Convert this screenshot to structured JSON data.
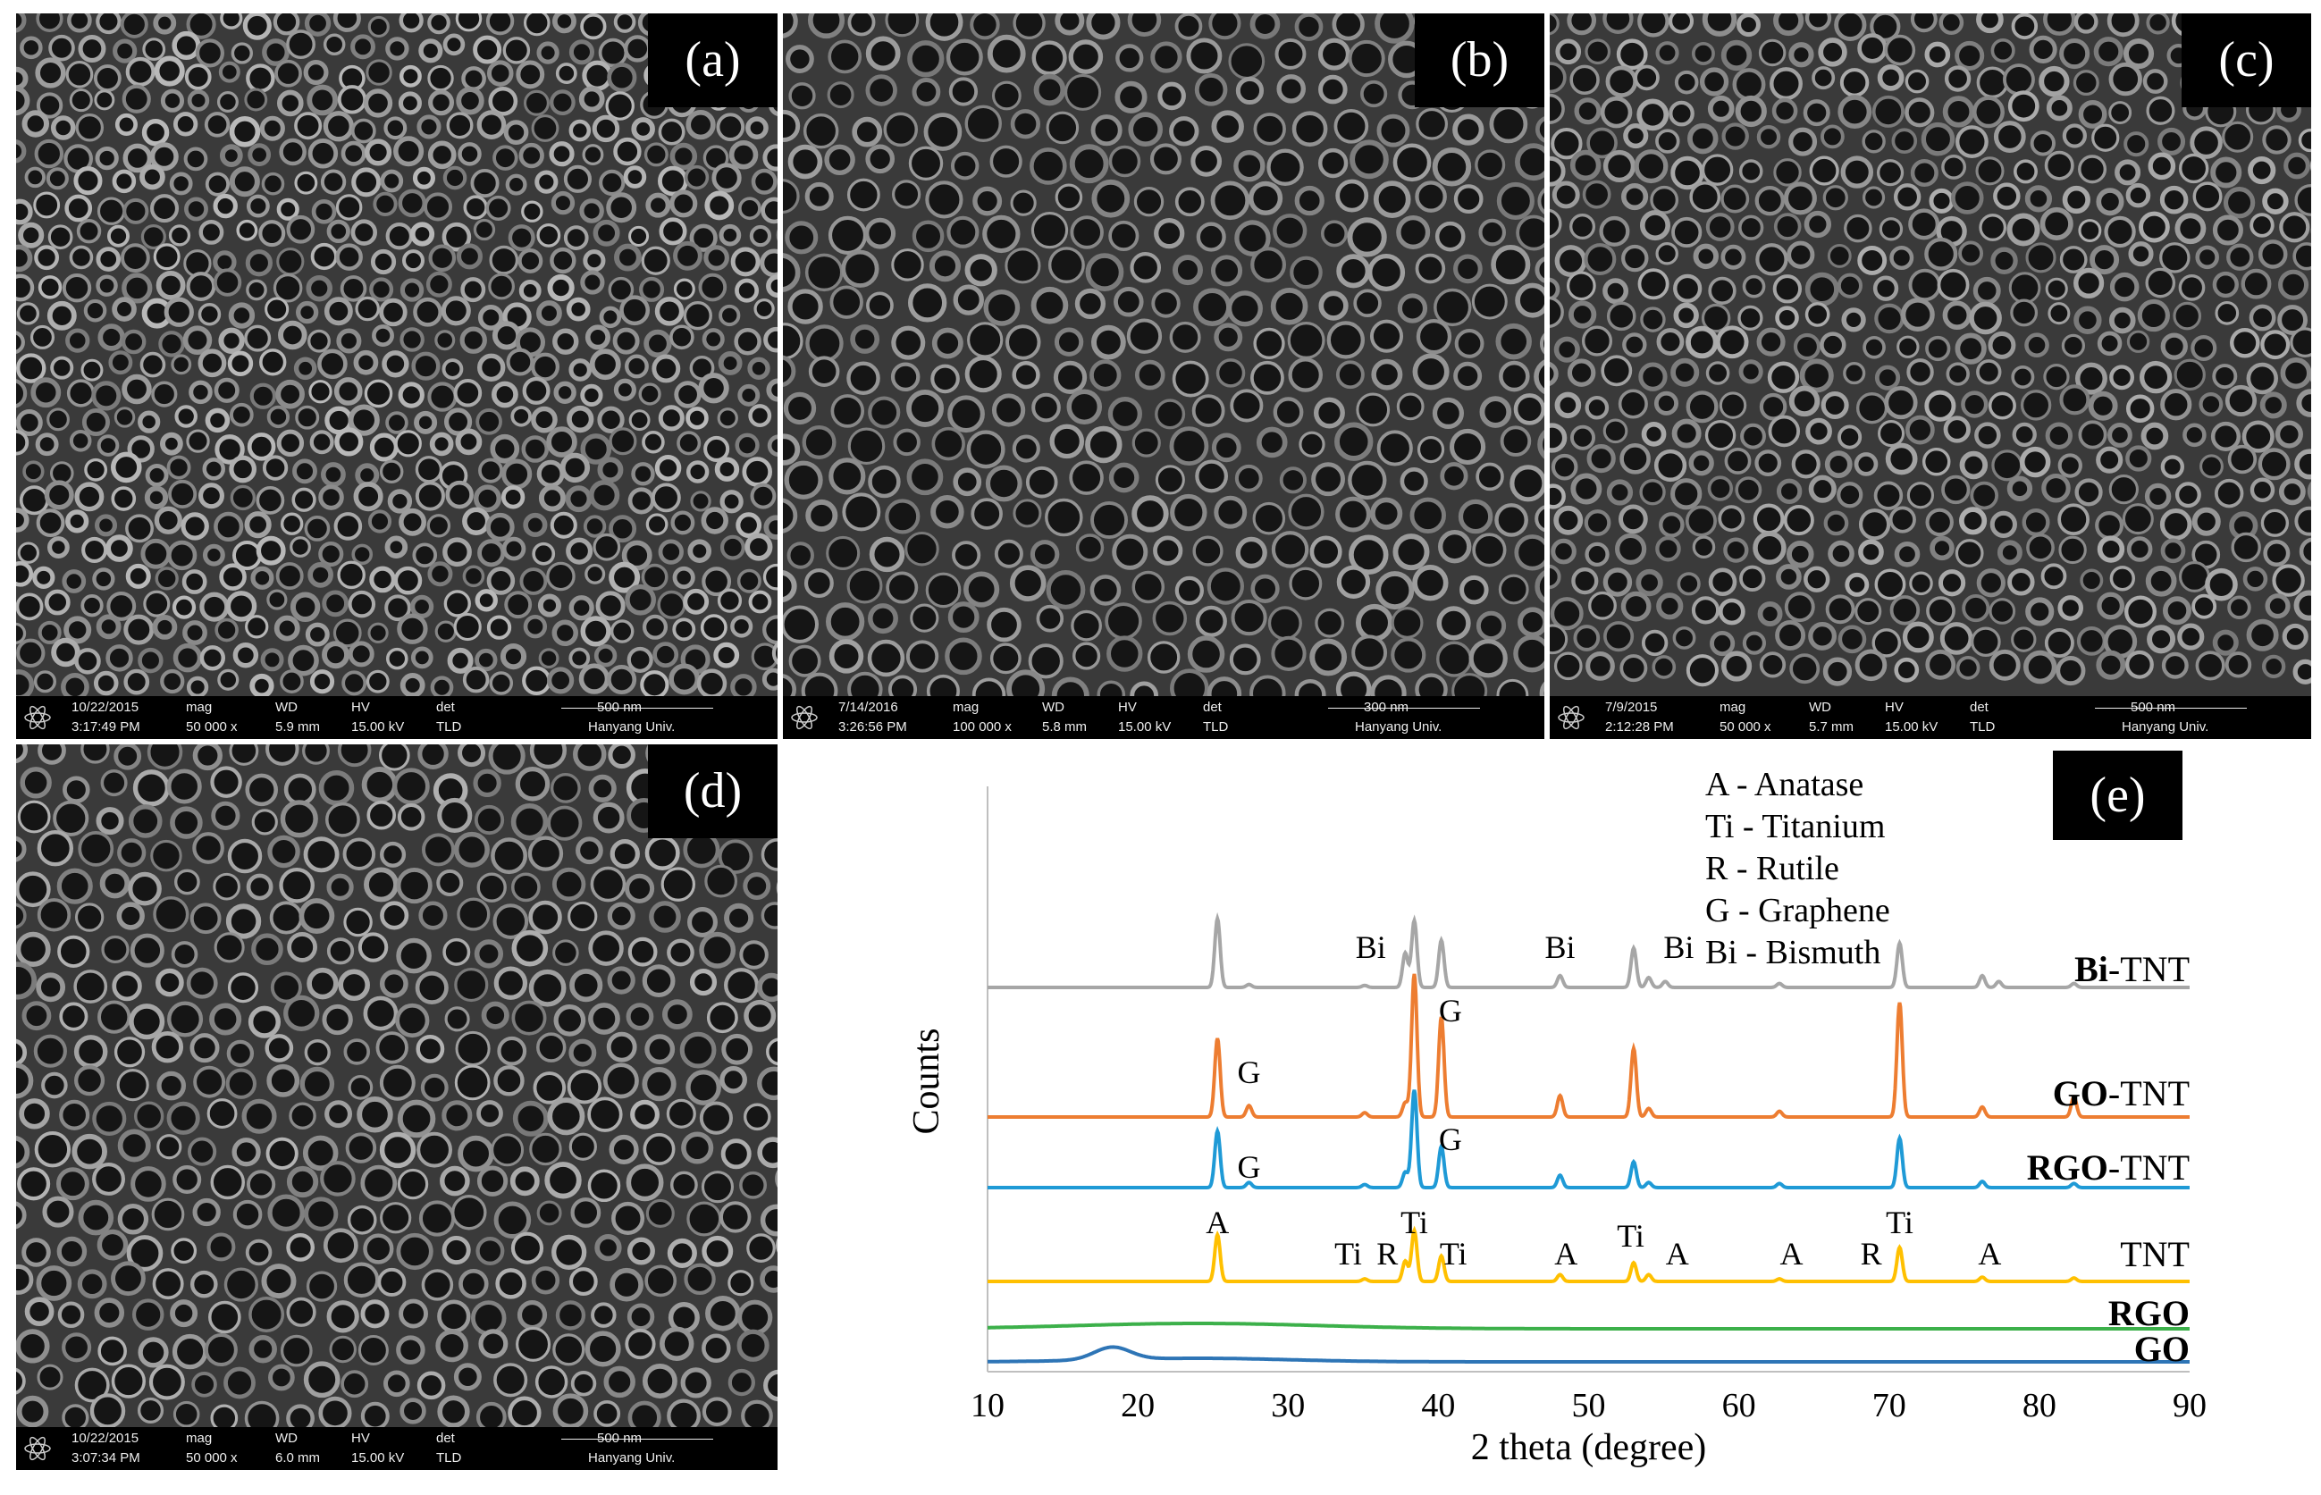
{
  "panels": [
    {
      "label": "(a)",
      "date": "10/22/2015",
      "time": "3:17:49 PM",
      "mag": "50 000 x",
      "wd": "5.9 mm",
      "hv": "15.00 kV",
      "det": "TLD",
      "scale": "500 nm",
      "inst": "Hanyang Univ."
    },
    {
      "label": "(b)",
      "date": "7/14/2016",
      "time": "3:26:56 PM",
      "mag": "100 000 x",
      "wd": "5.8 mm",
      "hv": "15.00 kV",
      "det": "TLD",
      "scale": "300 nm",
      "inst": "Hanyang Univ."
    },
    {
      "label": "(c)",
      "date": "7/9/2015",
      "time": "2:12:28 PM",
      "mag": "50 000 x",
      "wd": "5.7 mm",
      "hv": "15.00 kV",
      "det": "TLD",
      "scale": "500 nm",
      "inst": "Hanyang Univ."
    },
    {
      "label": "(d)",
      "date": "10/22/2015",
      "time": "3:07:34 PM",
      "mag": "50 000 x",
      "wd": "6.0 mm",
      "hv": "15.00 kV",
      "det": "TLD",
      "scale": "500 nm",
      "inst": "Hanyang Univ."
    }
  ],
  "bar_headers": {
    "mag": "mag",
    "wd": "WD",
    "hv": "HV",
    "det": "det"
  },
  "chart_data": {
    "type": "line",
    "panel_label": "(e)",
    "xlabel": "2 theta (degree)",
    "ylabel": "Counts",
    "xlim": [
      10,
      90
    ],
    "xticks": [
      10,
      20,
      30,
      40,
      50,
      60,
      70,
      80,
      90
    ],
    "legend": [
      "A - Anatase",
      "Ti - Titanium",
      "R - Rutile",
      "G - Graphene",
      "Bi - Bismuth"
    ],
    "series": [
      {
        "name": "Bi-TNT",
        "color": "#a6a6a6",
        "baseline": 0.855,
        "peaks": [
          [
            25.3,
            0.7
          ],
          [
            27.4,
            0.03
          ],
          [
            35.1,
            0.02
          ],
          [
            37.8,
            0.35
          ],
          [
            38.4,
            0.68
          ],
          [
            40.2,
            0.48
          ],
          [
            48.1,
            0.12
          ],
          [
            53.0,
            0.4
          ],
          [
            54.0,
            0.1
          ],
          [
            55.1,
            0.06
          ],
          [
            62.7,
            0.04
          ],
          [
            70.7,
            0.45
          ],
          [
            76.2,
            0.12
          ],
          [
            77.3,
            0.06
          ],
          [
            82.3,
            0.04
          ]
        ]
      },
      {
        "name": "GO-TNT",
        "color": "#ed7d31",
        "baseline": 0.8,
        "peaks": [
          [
            25.3,
            0.55
          ],
          [
            27.4,
            0.08
          ],
          [
            35.1,
            0.03
          ],
          [
            37.8,
            0.1
          ],
          [
            38.4,
            1.0
          ],
          [
            40.2,
            0.7
          ],
          [
            48.1,
            0.15
          ],
          [
            53.0,
            0.48
          ],
          [
            54.0,
            0.06
          ],
          [
            62.7,
            0.04
          ],
          [
            70.7,
            0.8
          ],
          [
            76.2,
            0.07
          ],
          [
            82.3,
            0.14
          ]
        ]
      },
      {
        "name": "RGO-TNT",
        "color": "#1f9ad6",
        "baseline": 0.755,
        "peaks": [
          [
            25.3,
            0.55
          ],
          [
            27.4,
            0.05
          ],
          [
            35.1,
            0.03
          ],
          [
            37.8,
            0.15
          ],
          [
            38.4,
            0.95
          ],
          [
            40.2,
            0.4
          ],
          [
            48.1,
            0.12
          ],
          [
            53.0,
            0.25
          ],
          [
            54.0,
            0.05
          ],
          [
            62.7,
            0.04
          ],
          [
            70.7,
            0.48
          ],
          [
            76.2,
            0.06
          ],
          [
            82.3,
            0.04
          ]
        ]
      },
      {
        "name": "TNT",
        "color": "#ffc000",
        "baseline": 0.79,
        "peaks": [
          [
            25.3,
            0.55
          ],
          [
            35.1,
            0.03
          ],
          [
            37.8,
            0.24
          ],
          [
            38.4,
            0.6
          ],
          [
            40.2,
            0.3
          ],
          [
            48.1,
            0.08
          ],
          [
            53.0,
            0.22
          ],
          [
            54.0,
            0.08
          ],
          [
            62.7,
            0.03
          ],
          [
            70.7,
            0.4
          ],
          [
            76.2,
            0.05
          ],
          [
            82.3,
            0.04
          ]
        ]
      },
      {
        "name": "RGO",
        "color": "#3cb04a",
        "hump": [
          24,
          0.05
        ]
      },
      {
        "name": "GO",
        "color": "#2e75b6",
        "hump": [
          18.3,
          0.06
        ]
      }
    ],
    "annotations": [
      {
        "series": "Bi-TNT",
        "items": [
          [
            "Bi",
            35.5
          ],
          [
            "Bi",
            48.1
          ],
          [
            "Bi",
            56.0
          ]
        ]
      },
      {
        "series": "GO-TNT",
        "items": [
          [
            "G",
            27.4
          ],
          [
            "G",
            40.8
          ]
        ]
      },
      {
        "series": "RGO-TNT",
        "items": [
          [
            "G",
            27.4
          ],
          [
            "G",
            40.8
          ]
        ]
      },
      {
        "series": "TNT",
        "items": [
          [
            "A",
            25.3
          ],
          [
            "Ti",
            34.0
          ],
          [
            "R",
            36.6
          ],
          [
            "Ti",
            38.4
          ],
          [
            "Ti",
            41.0
          ],
          [
            "A",
            48.5
          ],
          [
            "Ti",
            52.8
          ],
          [
            "A",
            55.9
          ],
          [
            "A",
            63.5
          ],
          [
            "R",
            68.8
          ],
          [
            "Ti",
            70.7
          ],
          [
            "A",
            76.7
          ]
        ]
      }
    ],
    "series_labels": [
      {
        "text": "Bi-TNT",
        "bold_prefix": "Bi"
      },
      {
        "text": "GO-TNT",
        "bold_prefix": "GO"
      },
      {
        "text": "RGO-TNT",
        "bold_prefix": "RGO"
      },
      {
        "text": "TNT",
        "bold_prefix": ""
      },
      {
        "text": "RGO",
        "bold_prefix": "RGO"
      },
      {
        "text": "GO",
        "bold_prefix": "GO"
      }
    ]
  }
}
